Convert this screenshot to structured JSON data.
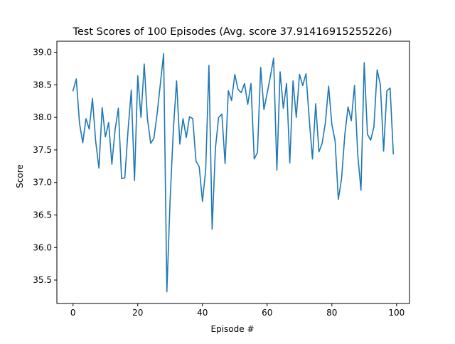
{
  "chart_data": {
    "type": "line",
    "title": "Test Scores of 100 Episodes (Avg. score 37.91416915255226)",
    "xlabel": "Episode #",
    "ylabel": "Score",
    "xlim": [
      -5,
      104
    ],
    "ylim": [
      35.14,
      39.17
    ],
    "xticks": [
      0,
      20,
      40,
      60,
      80,
      100
    ],
    "xtick_labels": [
      "0",
      "20",
      "40",
      "60",
      "80",
      "100"
    ],
    "yticks": [
      35.5,
      36.0,
      36.5,
      37.0,
      37.5,
      38.0,
      38.5,
      39.0
    ],
    "ytick_labels": [
      "35.5",
      "36.0",
      "36.5",
      "37.0",
      "37.5",
      "38.0",
      "38.5",
      "39.0"
    ],
    "grid": false,
    "line_color": "#1f77b4",
    "series": [
      {
        "x": [
          0,
          1,
          2,
          3,
          4,
          5,
          6,
          7,
          8,
          9,
          10,
          11,
          12,
          13,
          14,
          15,
          16,
          17,
          18,
          19,
          20,
          21,
          22,
          23,
          24,
          25,
          26,
          27,
          28,
          29,
          30,
          31,
          32,
          33,
          34,
          35,
          36,
          37,
          38,
          39,
          40,
          41,
          42,
          43,
          44,
          45,
          46,
          47,
          48,
          49,
          50,
          51,
          52,
          53,
          54,
          55,
          56,
          57,
          58,
          59,
          60,
          61,
          62,
          63,
          64,
          65,
          66,
          67,
          68,
          69,
          70,
          71,
          72,
          73,
          74,
          75,
          76,
          77,
          78,
          79,
          80,
          81,
          82,
          83,
          84,
          85,
          86,
          87,
          88,
          89,
          90,
          91,
          92,
          93,
          94,
          95,
          96,
          97,
          98,
          99
        ],
        "y": [
          38.41,
          38.59,
          37.91,
          37.61,
          37.98,
          37.82,
          38.29,
          37.63,
          37.22,
          38.15,
          37.7,
          37.92,
          37.28,
          37.81,
          38.14,
          37.06,
          37.07,
          37.8,
          38.42,
          37.03,
          38.64,
          38.0,
          38.82,
          37.98,
          37.6,
          37.68,
          38.06,
          38.52,
          38.98,
          35.32,
          36.73,
          37.81,
          38.56,
          37.59,
          37.98,
          37.69,
          38.01,
          37.98,
          37.33,
          37.24,
          36.71,
          37.19,
          38.8,
          36.28,
          37.52,
          38.0,
          38.05,
          37.29,
          38.41,
          38.26,
          38.66,
          38.43,
          38.38,
          38.52,
          38.2,
          38.52,
          37.36,
          37.46,
          38.77,
          38.12,
          38.37,
          38.63,
          38.91,
          37.19,
          38.7,
          38.14,
          38.52,
          37.3,
          38.56,
          38.0,
          38.66,
          38.49,
          38.67,
          37.98,
          37.36,
          38.21,
          37.47,
          37.6,
          37.92,
          38.48,
          37.89,
          37.64,
          36.74,
          37.06,
          37.73,
          38.16,
          37.95,
          38.49,
          37.43,
          36.88,
          38.84,
          37.74,
          37.65,
          37.85,
          38.73,
          38.5,
          37.48,
          38.41,
          38.45,
          37.44
        ]
      }
    ]
  }
}
